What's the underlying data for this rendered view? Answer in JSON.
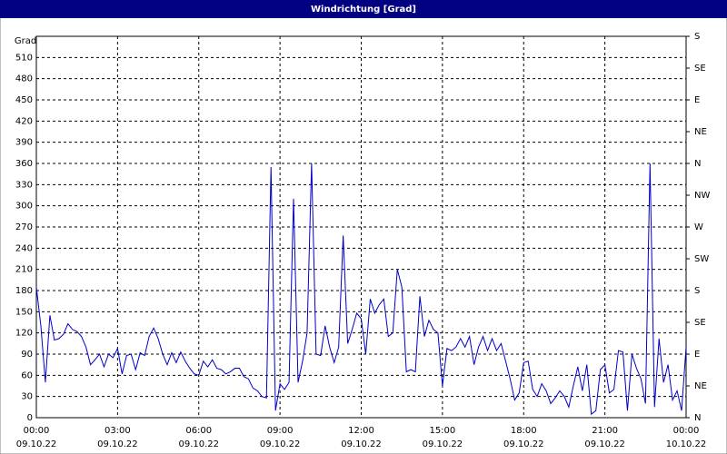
{
  "chart_data": {
    "type": "line",
    "title": "Windrichtung [Grad]",
    "y_label": "Grad",
    "xlim": [
      0,
      1440
    ],
    "xticks": [
      {
        "value": 0,
        "label": "00:00"
      },
      {
        "value": 180,
        "label": "03:00"
      },
      {
        "value": 360,
        "label": "06:00"
      },
      {
        "value": 540,
        "label": "09:00"
      },
      {
        "value": 720,
        "label": "12:00"
      },
      {
        "value": 900,
        "label": "15:00"
      },
      {
        "value": 1080,
        "label": "18:00"
      },
      {
        "value": 1260,
        "label": "21:00"
      },
      {
        "value": 1440,
        "label": "00:00"
      }
    ],
    "xtick_dates": [
      "09.10.22",
      "09.10.22",
      "09.10.22",
      "09.10.22",
      "09.10.22",
      "09.10.22",
      "09.10.22",
      "09.10.22",
      "10.10.22"
    ],
    "ylim": [
      0,
      540
    ],
    "yticks": [
      0,
      30,
      60,
      90,
      120,
      150,
      180,
      210,
      240,
      270,
      300,
      330,
      360,
      390,
      420,
      450,
      480,
      510
    ],
    "y2lim": [
      0,
      540
    ],
    "y2ticks": [
      {
        "value": 0,
        "label": "N"
      },
      {
        "value": 45,
        "label": "NE"
      },
      {
        "value": 90,
        "label": "E"
      },
      {
        "value": 135,
        "label": "SE"
      },
      {
        "value": 180,
        "label": "S"
      },
      {
        "value": 225,
        "label": "SW"
      },
      {
        "value": 270,
        "label": "W"
      },
      {
        "value": 315,
        "label": "NW"
      },
      {
        "value": 360,
        "label": "N"
      },
      {
        "value": 405,
        "label": "NE"
      },
      {
        "value": 450,
        "label": "E"
      },
      {
        "value": 495,
        "label": "SE"
      },
      {
        "value": 540,
        "label": "S"
      }
    ],
    "grid": true,
    "x": [
      0,
      10,
      20,
      30,
      40,
      50,
      60,
      70,
      80,
      90,
      100,
      110,
      120,
      130,
      140,
      150,
      160,
      170,
      180,
      190,
      200,
      210,
      220,
      230,
      240,
      250,
      260,
      270,
      280,
      290,
      300,
      310,
      320,
      330,
      340,
      350,
      360,
      370,
      380,
      390,
      400,
      410,
      420,
      430,
      440,
      450,
      460,
      470,
      480,
      490,
      500,
      510,
      520,
      530,
      540,
      550,
      560,
      570,
      580,
      590,
      600,
      610,
      620,
      630,
      640,
      650,
      660,
      670,
      680,
      690,
      700,
      710,
      720,
      730,
      740,
      750,
      760,
      770,
      780,
      790,
      800,
      810,
      820,
      830,
      840,
      850,
      860,
      870,
      880,
      890,
      900,
      910,
      920,
      930,
      940,
      950,
      960,
      970,
      980,
      990,
      1000,
      1010,
      1020,
      1030,
      1040,
      1050,
      1060,
      1070,
      1080,
      1090,
      1100,
      1110,
      1120,
      1130,
      1140,
      1150,
      1160,
      1170,
      1180,
      1190,
      1200,
      1210,
      1220,
      1230,
      1240,
      1250,
      1260,
      1270,
      1280,
      1290,
      1300,
      1310,
      1320,
      1330,
      1340,
      1350,
      1360,
      1370,
      1380,
      1390,
      1400,
      1410,
      1420,
      1430,
      1440
    ],
    "series": [
      {
        "color": "#0000c8",
        "values": [
          185,
          130,
          50,
          145,
          110,
          112,
          118,
          133,
          125,
          122,
          115,
          100,
          75,
          82,
          90,
          72,
          90,
          85,
          98,
          62,
          88,
          90,
          68,
          92,
          88,
          115,
          127,
          112,
          90,
          75,
          92,
          78,
          93,
          80,
          70,
          62,
          60,
          80,
          72,
          82,
          70,
          68,
          62,
          65,
          70,
          70,
          58,
          55,
          42,
          38,
          30,
          28,
          355,
          10,
          48,
          40,
          50,
          310,
          50,
          80,
          120,
          360,
          90,
          88,
          130,
          100,
          78,
          100,
          258,
          105,
          125,
          148,
          140,
          90,
          168,
          148,
          160,
          168,
          115,
          120,
          210,
          185,
          65,
          68,
          65,
          172,
          115,
          138,
          125,
          120,
          45,
          98,
          95,
          100,
          112,
          100,
          115,
          75,
          100,
          115,
          95,
          112,
          95,
          105,
          80,
          55,
          25,
          35,
          78,
          80,
          40,
          30,
          48,
          38,
          20,
          28,
          38,
          30,
          15,
          45,
          72,
          38,
          75,
          5,
          10,
          68,
          75,
          35,
          40,
          95,
          93,
          10,
          90,
          70,
          55,
          20,
          360,
          15,
          112,
          50,
          75,
          25,
          38,
          10,
          100
        ]
      }
    ]
  }
}
